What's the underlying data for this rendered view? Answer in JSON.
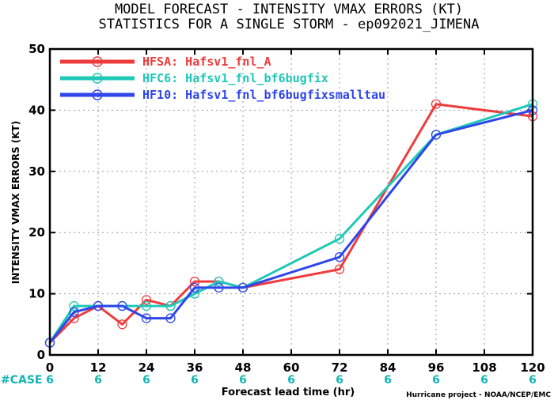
{
  "chart_data": {
    "type": "line",
    "title": "MODEL FORECAST - INTENSITY VMAX ERRORS (KT)",
    "subtitle": "STATISTICS FOR A SINGLE STORM - ep092021_JIMENA",
    "xlabel": "Forecast lead time (hr)",
    "ylabel": "INTENSITY VMAX ERRORS (KT)",
    "xlim": [
      0,
      120
    ],
    "ylim": [
      0,
      50
    ],
    "xticks": [
      0,
      12,
      24,
      36,
      48,
      60,
      72,
      84,
      96,
      108,
      120
    ],
    "yticks": [
      0,
      10,
      20,
      30,
      40,
      50
    ],
    "case_label": "#CASE",
    "case_counts": [
      "6",
      "6",
      "6",
      "6",
      "6",
      "6",
      "6",
      "6",
      "6",
      "6",
      "6"
    ],
    "case_color": "#11b5b5",
    "credit": "Hurricane project - NOAA/NCEP/EMC",
    "legend_position": "top-left",
    "series": [
      {
        "name": "HFSA: Hafsv1_fnl_A",
        "color": "#ee3c3c",
        "x": [
          0,
          6,
          12,
          18,
          24,
          30,
          36,
          42,
          48,
          72,
          96,
          120
        ],
        "y": [
          2,
          6,
          8,
          5,
          9,
          8,
          12,
          12,
          11,
          14,
          41,
          39
        ]
      },
      {
        "name": "HFC6: Hafsv1_fnl_bf6bugfix",
        "color": "#20c8b8",
        "x": [
          0,
          6,
          12,
          18,
          24,
          30,
          36,
          42,
          48,
          72,
          96,
          120
        ],
        "y": [
          2,
          8,
          8,
          8,
          8,
          8,
          10,
          12,
          11,
          19,
          36,
          41
        ]
      },
      {
        "name": "HF10: Hafsv1_fnl_bf6bugfixsmalltau",
        "color": "#2e46ea",
        "x": [
          0,
          6,
          12,
          18,
          24,
          30,
          36,
          42,
          48,
          72,
          96,
          120
        ],
        "y": [
          2,
          7,
          8,
          8,
          6,
          6,
          11,
          11,
          11,
          16,
          36,
          40
        ]
      }
    ]
  }
}
